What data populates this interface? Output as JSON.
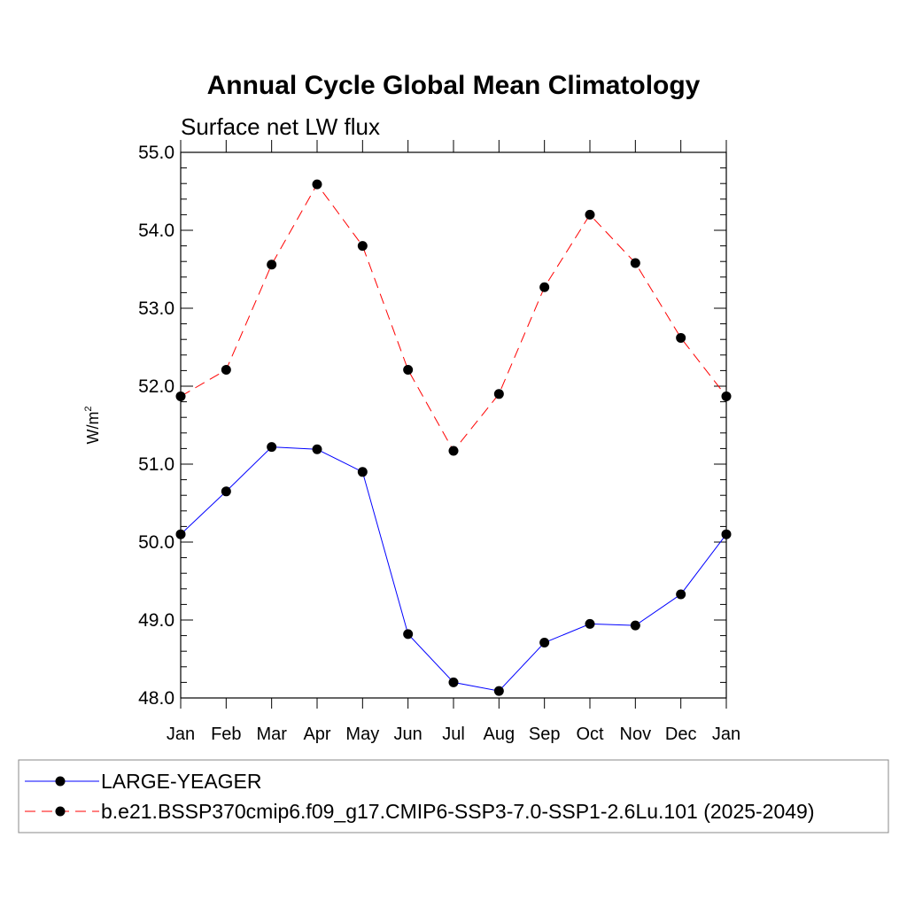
{
  "chart_data": {
    "type": "line",
    "title": "Annual Cycle Global Mean Climatology",
    "subtitle": "Surface net LW flux",
    "ylabel": "W/m",
    "ylabel_superscript": "2",
    "xlabel": "",
    "categories": [
      "Jan",
      "Feb",
      "Mar",
      "Apr",
      "May",
      "Jun",
      "Jul",
      "Aug",
      "Sep",
      "Oct",
      "Nov",
      "Dec",
      "Jan"
    ],
    "ylim": [
      48.0,
      55.0
    ],
    "yticks": [
      "48.0",
      "49.0",
      "50.0",
      "51.0",
      "52.0",
      "53.0",
      "54.0",
      "55.0"
    ],
    "grid": false,
    "legend_position": "bottom",
    "series": [
      {
        "name": "LARGE-YEAGER",
        "color": "#0000ff",
        "line_style": "solid",
        "marker": "filled-circle",
        "values": [
          50.1,
          50.65,
          51.22,
          51.19,
          50.9,
          48.82,
          48.2,
          48.09,
          48.71,
          48.95,
          48.93,
          49.33,
          50.1
        ]
      },
      {
        "name": "b.e21.BSSP370cmip6.f09_g17.CMIP6-SSP3-7.0-SSP1-2.6Lu.101 (2025-2049)",
        "color": "#ff0000",
        "line_style": "dashed",
        "marker": "filled-circle",
        "values": [
          51.87,
          52.21,
          53.56,
          54.59,
          53.8,
          52.21,
          51.17,
          51.9,
          53.27,
          54.2,
          53.58,
          52.62,
          51.87
        ]
      }
    ]
  }
}
